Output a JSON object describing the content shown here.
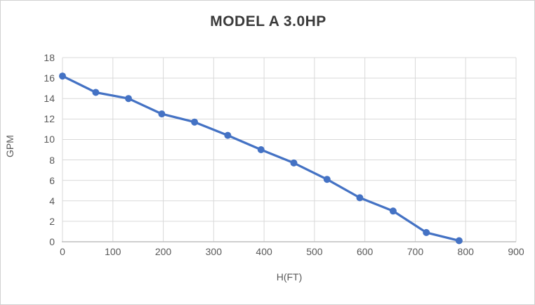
{
  "chart_data": {
    "type": "line",
    "title": "MODEL A 3.0HP",
    "xlabel": "H(FT)",
    "ylabel": "GPM",
    "xlim": [
      0,
      900
    ],
    "ylim": [
      0,
      18
    ],
    "x_ticks": [
      0,
      100,
      200,
      300,
      400,
      500,
      600,
      700,
      800,
      900
    ],
    "y_ticks": [
      0,
      2,
      4,
      6,
      8,
      10,
      12,
      14,
      16,
      18
    ],
    "grid": true,
    "legend": "none",
    "series": [
      {
        "name": "MODEL A 3.0HP",
        "marker": "circle",
        "points": [
          [
            0,
            16.2
          ],
          [
            66,
            14.6
          ],
          [
            131,
            14.0
          ],
          [
            197,
            12.5
          ],
          [
            262,
            11.7
          ],
          [
            328,
            10.4
          ],
          [
            394,
            9.0
          ],
          [
            459,
            7.7
          ],
          [
            525,
            6.1
          ],
          [
            590,
            4.3
          ],
          [
            656,
            3.0
          ],
          [
            722,
            0.9
          ],
          [
            787,
            0.1
          ]
        ]
      }
    ]
  },
  "colors": {
    "series_line": "#4472C4",
    "marker_fill": "#4472C4",
    "gridline": "#D9D9D9",
    "axis_line": "#BFBFBF",
    "tick_text": "#595959",
    "title_text": "#3A3A3A",
    "chart_border": "#D2D2D2",
    "background": "#FFFFFF"
  }
}
